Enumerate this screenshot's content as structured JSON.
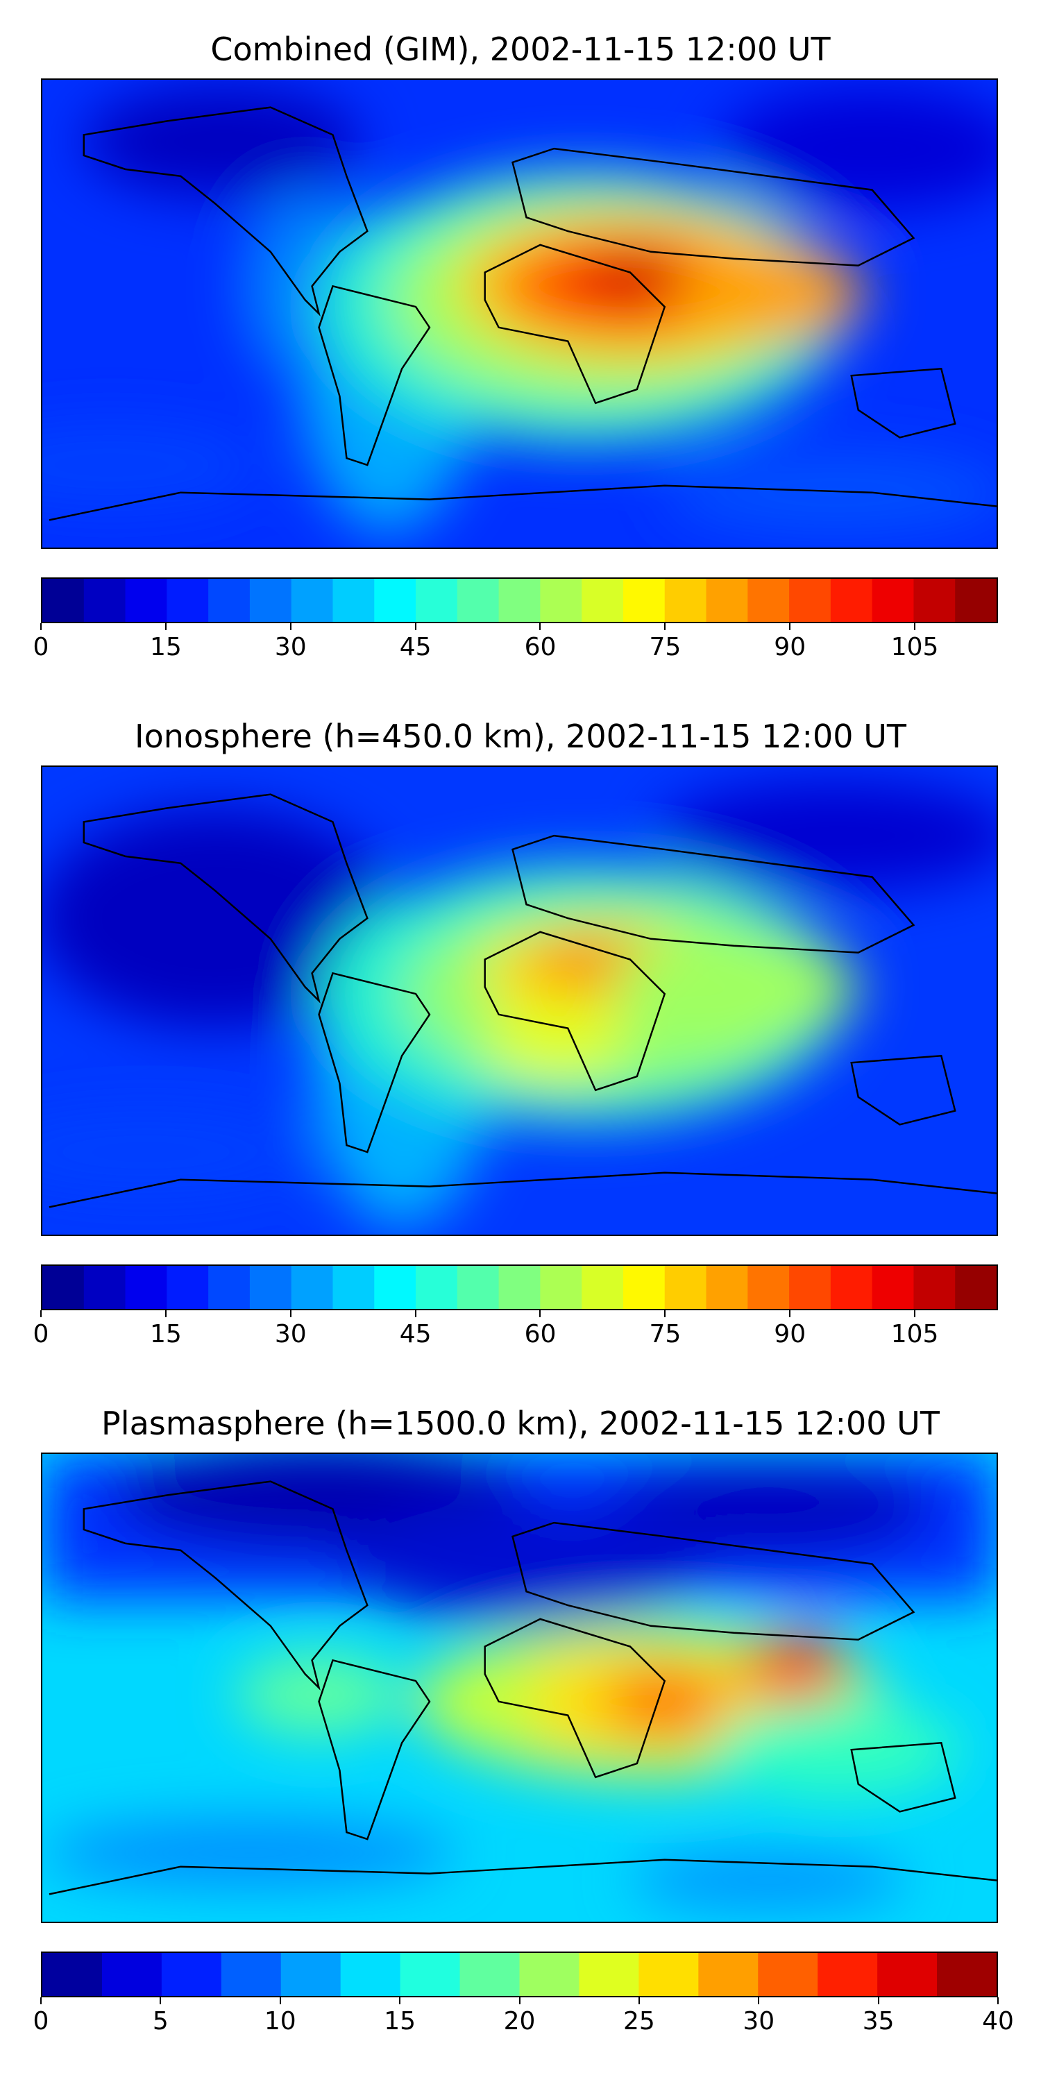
{
  "panels": [
    {
      "title": "Combined (GIM), 2002-11-15 12:00 UT",
      "colorbar": {
        "min": 0,
        "max": 115,
        "step": 5,
        "tick_labels": [
          "0",
          "15",
          "30",
          "45",
          "60",
          "75",
          "90",
          "105"
        ],
        "tick_values": [
          0,
          15,
          30,
          45,
          60,
          75,
          90,
          105
        ]
      }
    },
    {
      "title": "Ionosphere  (h=450.0 km), 2002-11-15 12:00 UT",
      "colorbar": {
        "min": 0,
        "max": 115,
        "step": 5,
        "tick_labels": [
          "0",
          "15",
          "30",
          "45",
          "60",
          "75",
          "90",
          "105"
        ],
        "tick_values": [
          0,
          15,
          30,
          45,
          60,
          75,
          90,
          105
        ]
      }
    },
    {
      "title": "Plasmasphere (h=1500.0 km), 2002-11-15 12:00 UT",
      "colorbar": {
        "min": 0,
        "max": 40,
        "step": 2.5,
        "tick_labels": [
          "0",
          "5",
          "10",
          "15",
          "20",
          "25",
          "30",
          "35",
          "40"
        ],
        "tick_values": [
          0,
          5,
          10,
          15,
          20,
          25,
          30,
          35,
          40
        ]
      }
    }
  ],
  "colormap": "jet",
  "projection": "plate-carree"
}
